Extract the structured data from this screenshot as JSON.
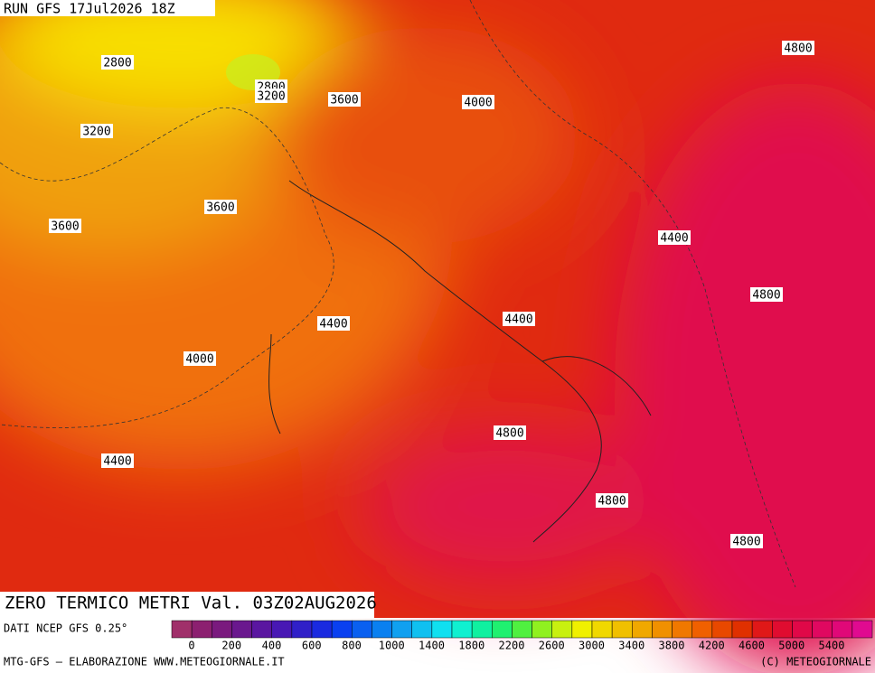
{
  "header": {
    "run": "RUN GFS 17Jul2026 18Z"
  },
  "map": {
    "contour_labels": [
      "2800",
      "2800",
      "3200",
      "3600",
      "4000",
      "4800",
      "3200",
      "3600",
      "3600",
      "4400",
      "4800",
      "4400",
      "4400",
      "4000",
      "4800",
      "4400",
      "4800",
      "4800"
    ]
  },
  "title": "ZERO TERMICO METRI Val. 03Z02AUG2026",
  "source": "DATI NCEP GFS 0.25°",
  "footer": {
    "left": "MTG-GFS — ELABORAZIONE WWW.METEOGIORNALE.IT",
    "right": "(C) METEOGIORNALE"
  },
  "colorbar": {
    "labels": [
      "0",
      "200",
      "400",
      "600",
      "800",
      "1000",
      "1400",
      "1800",
      "2200",
      "2600",
      "3000",
      "3400",
      "3800",
      "4200",
      "4600",
      "5000",
      "5400"
    ],
    "colors": [
      "#a0306a",
      "#8c2070",
      "#7a1a7e",
      "#6a188e",
      "#5a16a0",
      "#4818b4",
      "#3020c8",
      "#1a2ae0",
      "#0a40f0",
      "#0a60f0",
      "#0a80f0",
      "#10a0f0",
      "#10c0f0",
      "#10e0f0",
      "#10f0d0",
      "#10f0a0",
      "#20f070",
      "#50f040",
      "#90f020",
      "#c8f010",
      "#f0f000",
      "#f0d800",
      "#f0c000",
      "#f0a800",
      "#f09000",
      "#f07800",
      "#f06000",
      "#e84800",
      "#e03000",
      "#e01818",
      "#e00c30",
      "#e00848",
      "#e00860",
      "#e00878",
      "#e00a90"
    ]
  }
}
